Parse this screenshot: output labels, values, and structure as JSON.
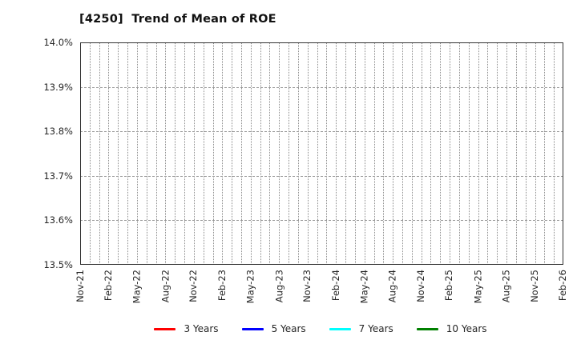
{
  "title": "[4250]  Trend of Mean of ROE",
  "chart_data": {
    "type": "line",
    "title": "[4250]  Trend of Mean of ROE",
    "x_tick_labels": [
      "Nov-21",
      "Feb-22",
      "May-22",
      "Aug-22",
      "Nov-22",
      "Feb-23",
      "May-23",
      "Aug-23",
      "Nov-23",
      "Feb-24",
      "May-24",
      "Aug-24",
      "Nov-24",
      "Feb-25",
      "May-25",
      "Aug-25",
      "Nov-25",
      "Feb-26"
    ],
    "months_between_labels": 3,
    "total_month_intervals": 51,
    "y_axis": {
      "unit": "%",
      "min": 13.5,
      "max": 14.0,
      "tick_step": 0.1,
      "tick_labels": [
        "14.0%",
        "13.9%",
        "13.8%",
        "13.7%",
        "13.6%",
        "13.5%"
      ]
    },
    "series": [
      {
        "name": "3 Years",
        "color": "#ff0000",
        "values": []
      },
      {
        "name": "5 Years",
        "color": "#0000ff",
        "values": []
      },
      {
        "name": "7 Years",
        "color": "#00ffff",
        "values": []
      },
      {
        "name": "10 Years",
        "color": "#008000",
        "values": []
      }
    ],
    "grid": true,
    "legend_position": "bottom",
    "plot_area_empty": true
  },
  "colors": {
    "background": "#ffffff",
    "axis": "#333333",
    "grid_vertical": "#8a8a8a",
    "grid_horizontal": "#9a9a9a",
    "tick_label": "#262626",
    "title": "#111111"
  }
}
